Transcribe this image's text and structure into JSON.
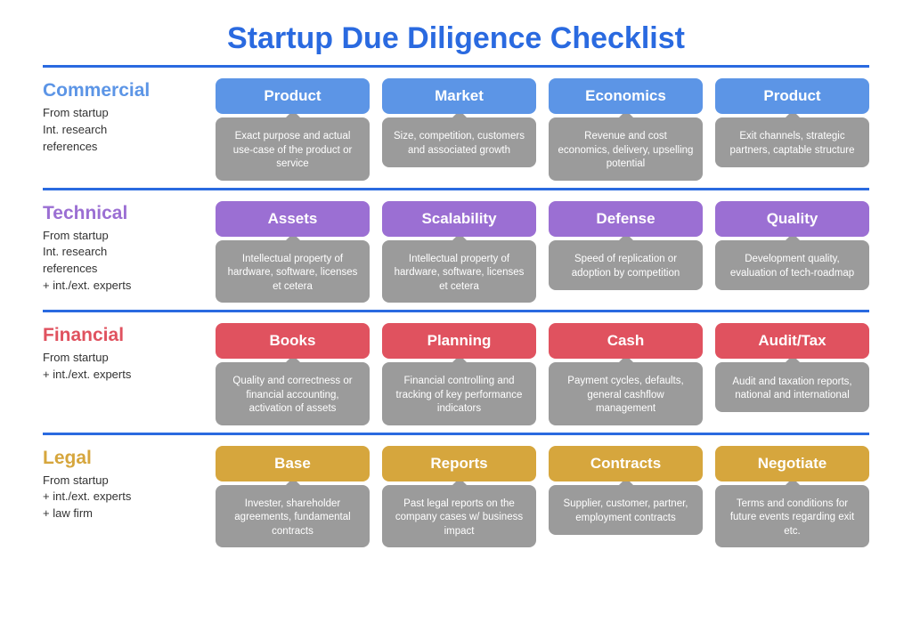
{
  "title": "Startup Due Diligence Checklist",
  "title_color": "#2a6ae0",
  "divider_color": "#2a6ae0",
  "body_bg": "#9b9b9b",
  "sections": [
    {
      "key": "commercial",
      "label": "Commercial",
      "label_color": "#5c95e6",
      "head_color": "#5c95e6",
      "sources": [
        "From startup",
        "Int. research",
        "references"
      ],
      "cards": [
        {
          "title": "Product",
          "desc": "Exact purpose and actual use-case of the product or service"
        },
        {
          "title": "Market",
          "desc": "Size, competition, customers and associated growth"
        },
        {
          "title": "Economics",
          "desc": "Revenue and cost economics, delivery, upselling potential"
        },
        {
          "title": "Product",
          "desc": "Exit channels, strategic partners, captable structure"
        }
      ]
    },
    {
      "key": "technical",
      "label": "Technical",
      "label_color": "#9b6fd3",
      "head_color": "#9b6fd3",
      "sources": [
        "From startup",
        "Int. research",
        "references",
        "+ int./ext. experts"
      ],
      "cards": [
        {
          "title": "Assets",
          "desc": "Intellectual property of hardware, software, licenses et cetera"
        },
        {
          "title": "Scalability",
          "desc": "Intellectual property of hardware, software, licenses et cetera"
        },
        {
          "title": "Defense",
          "desc": "Speed of replication or adoption by competition"
        },
        {
          "title": "Quality",
          "desc": "Development quality, evaluation of tech-roadmap"
        }
      ]
    },
    {
      "key": "financial",
      "label": "Financial",
      "label_color": "#e0525f",
      "head_color": "#e0525f",
      "sources": [
        "From startup",
        "+ int./ext. experts"
      ],
      "cards": [
        {
          "title": "Books",
          "desc": "Quality and correctness or financial accounting, activation of assets"
        },
        {
          "title": "Planning",
          "desc": "Financial controlling and tracking of key performance indicators"
        },
        {
          "title": "Cash",
          "desc": "Payment cycles, defaults, general cashflow management"
        },
        {
          "title": "Audit/Tax",
          "desc": "Audit and taxation reports, national and international"
        }
      ]
    },
    {
      "key": "legal",
      "label": "Legal",
      "label_color": "#d6a63d",
      "head_color": "#d6a63d",
      "sources": [
        "From startup",
        "+ int./ext. experts",
        "+ law firm"
      ],
      "cards": [
        {
          "title": "Base",
          "desc": "Invester, shareholder agreements, fundamental contracts"
        },
        {
          "title": "Reports",
          "desc": "Past legal reports on the company cases w/ business impact"
        },
        {
          "title": "Contracts",
          "desc": "Supplier, customer, partner, employment contracts"
        },
        {
          "title": "Negotiate",
          "desc": "Terms and conditions for future events regarding exit etc."
        }
      ]
    }
  ]
}
